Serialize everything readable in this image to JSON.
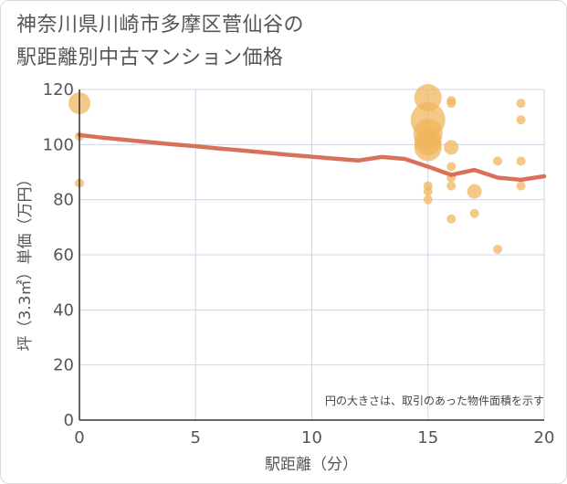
{
  "chart_data": {
    "type": "scatter",
    "title_line1": "神奈川県川崎市多摩区菅仙谷の",
    "title_line2": "駅距離別中古マンション価格",
    "xlabel": "駅距離（分）",
    "ylabel": "坪（3.3㎡）単価（万円）",
    "xlim": [
      0,
      20
    ],
    "ylim": [
      0,
      120
    ],
    "x_ticks": [
      "0",
      "5",
      "10",
      "15",
      "20"
    ],
    "y_ticks": [
      "0",
      "20",
      "40",
      "60",
      "80",
      "100",
      "120"
    ],
    "note": "円の大きさは、取引のあった物件面積を示す",
    "scatter_color": "#f0b45a",
    "trend_color": "#d9705a",
    "points": [
      {
        "x": 0,
        "y": 115,
        "r": 12
      },
      {
        "x": 0,
        "y": 86,
        "r": 5
      },
      {
        "x": 0,
        "y": 103,
        "r": 5
      },
      {
        "x": 15,
        "y": 117,
        "r": 15
      },
      {
        "x": 15,
        "y": 109,
        "r": 19
      },
      {
        "x": 15,
        "y": 104,
        "r": 16
      },
      {
        "x": 15,
        "y": 101,
        "r": 15
      },
      {
        "x": 15,
        "y": 99,
        "r": 15
      },
      {
        "x": 15,
        "y": 85,
        "r": 5
      },
      {
        "x": 15,
        "y": 83,
        "r": 5
      },
      {
        "x": 15,
        "y": 80,
        "r": 5
      },
      {
        "x": 16,
        "y": 116,
        "r": 5
      },
      {
        "x": 16,
        "y": 115,
        "r": 5
      },
      {
        "x": 16,
        "y": 99,
        "r": 8
      },
      {
        "x": 16,
        "y": 92,
        "r": 5
      },
      {
        "x": 16,
        "y": 88,
        "r": 5
      },
      {
        "x": 16,
        "y": 85,
        "r": 5
      },
      {
        "x": 16,
        "y": 73,
        "r": 5
      },
      {
        "x": 17,
        "y": 83,
        "r": 8
      },
      {
        "x": 17,
        "y": 75,
        "r": 5
      },
      {
        "x": 18,
        "y": 94,
        "r": 5
      },
      {
        "x": 18,
        "y": 62,
        "r": 5
      },
      {
        "x": 19,
        "y": 115,
        "r": 5
      },
      {
        "x": 19,
        "y": 109,
        "r": 5
      },
      {
        "x": 19,
        "y": 94,
        "r": 5
      },
      {
        "x": 19,
        "y": 85,
        "r": 5
      }
    ],
    "trend": {
      "x": [
        0,
        1,
        2,
        3,
        4,
        5,
        6,
        7,
        8,
        9,
        10,
        11,
        12,
        13,
        14,
        15,
        16,
        17,
        18,
        19,
        20
      ],
      "y": [
        103.5,
        102.5,
        101.7,
        100.9,
        100.1,
        99.4,
        98.6,
        97.9,
        97.1,
        96.3,
        95.6,
        94.9,
        94.2,
        95.5,
        94.8,
        92.0,
        89.0,
        90.8,
        88.0,
        87.2,
        88.5
      ]
    }
  }
}
